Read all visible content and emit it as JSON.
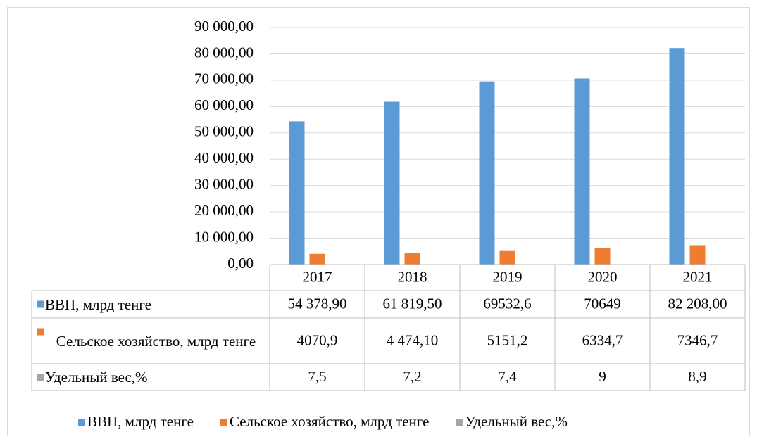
{
  "chart_data": {
    "type": "bar",
    "categories": [
      "2017",
      "2018",
      "2019",
      "2020",
      "2021"
    ],
    "series": [
      {
        "name": "ВВП, млрд тенге",
        "color": "#5b9bd5",
        "values": [
          54378.9,
          61819.5,
          69532.6,
          70649,
          82208
        ],
        "value_labels": [
          "54 378,90",
          "61 819,50",
          "69532,6",
          "70649",
          "82 208,00"
        ]
      },
      {
        "name": "Сельское хозяйство, млрд тенге",
        "color": "#ed7d31",
        "values": [
          4070.9,
          4474.1,
          5151.2,
          6334.7,
          7346.7
        ],
        "value_labels": [
          "4070,9",
          "4 474,10",
          "5151,2",
          "6334,7",
          "7346,7"
        ]
      },
      {
        "name": "Удельный вес,%",
        "color": "#a5a5a5",
        "values": [
          7.5,
          7.2,
          7.4,
          9,
          8.9
        ],
        "value_labels": [
          "7,5",
          "7,2",
          "7,4",
          "9",
          "8,9"
        ]
      }
    ],
    "ylim": [
      0,
      90000
    ],
    "yticks": [
      {
        "value": 0,
        "label": "0,00"
      },
      {
        "value": 10000,
        "label": "10 000,00"
      },
      {
        "value": 20000,
        "label": "20 000,00"
      },
      {
        "value": 30000,
        "label": "30 000,00"
      },
      {
        "value": 40000,
        "label": "40 000,00"
      },
      {
        "value": 50000,
        "label": "50 000,00"
      },
      {
        "value": 60000,
        "label": "60 000,00"
      },
      {
        "value": 70000,
        "label": "70 000,00"
      },
      {
        "value": 80000,
        "label": "80 000,00"
      },
      {
        "value": 90000,
        "label": "90 000,00"
      }
    ],
    "grid": true,
    "legend": "bottom",
    "data_table": true
  }
}
